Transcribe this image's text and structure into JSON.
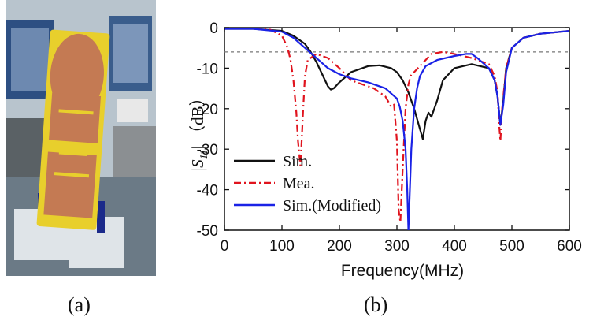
{
  "figure": {
    "captions": {
      "a": "(a)",
      "b": "(b)"
    },
    "photo": {
      "description_icon": "antenna-prototype-photo-icon"
    }
  },
  "colors": {
    "sim": "#111111",
    "mea": "#e0141e",
    "modified": "#1a22e6",
    "threshold": "#777777",
    "antenna_copper": "#c47a53",
    "antenna_fr4": "#e8cf2c"
  },
  "chart_data": {
    "type": "line",
    "title": "",
    "xlabel": "Frequency(MHz)",
    "ylabel": "|S11| (dB)",
    "ylabel_parts": {
      "main": "|S",
      "sub": "11",
      "tail": "| （dB）"
    },
    "xlim": [
      0,
      600
    ],
    "ylim": [
      -50,
      0
    ],
    "xticks": [
      0,
      100,
      200,
      300,
      400,
      500,
      600
    ],
    "yticks": [
      0,
      -10,
      -20,
      -30,
      -40,
      -50
    ],
    "threshold": -6,
    "grid": false,
    "legend_position": "bottom-left",
    "series": [
      {
        "name": "Sim.",
        "style": "solid",
        "color": "#111111",
        "x": [
          0,
          50,
          100,
          120,
          140,
          150,
          160,
          170,
          180,
          185,
          190,
          200,
          220,
          250,
          270,
          290,
          300,
          310,
          320,
          330,
          340,
          345,
          350,
          355,
          360,
          370,
          380,
          400,
          430,
          460,
          470,
          475,
          480,
          485,
          490,
          500,
          520,
          550,
          600
        ],
        "y": [
          -0.3,
          -0.3,
          -0.8,
          -2,
          -4,
          -6,
          -8.5,
          -11.5,
          -14.5,
          -15.3,
          -15,
          -13.5,
          -11,
          -9.5,
          -9.3,
          -10,
          -11,
          -13,
          -16,
          -20,
          -25,
          -27.5,
          -23,
          -21,
          -22,
          -18,
          -13,
          -10,
          -9,
          -10,
          -13,
          -17,
          -24,
          -18,
          -10,
          -5,
          -2.5,
          -1.5,
          -0.8
        ]
      },
      {
        "name": "Mea.",
        "style": "dashdot",
        "color": "#e0141e",
        "x": [
          0,
          60,
          80,
          100,
          110,
          115,
          120,
          125,
          128,
          130,
          132,
          134,
          137,
          140,
          145,
          160,
          180,
          200,
          220,
          240,
          260,
          280,
          290,
          295,
          300,
          303,
          306,
          310,
          315,
          320,
          325,
          330,
          340,
          350,
          360,
          380,
          400,
          430,
          460,
          470,
          475,
          478,
          480,
          483,
          490,
          500,
          520,
          550,
          600
        ],
        "y": [
          -0.2,
          -0.3,
          -0.5,
          -2,
          -5,
          -8,
          -13,
          -21,
          -28,
          -31,
          -34,
          -29,
          -20,
          -12,
          -8,
          -6.5,
          -7.5,
          -10,
          -13,
          -14,
          -15,
          -17,
          -19.5,
          -19,
          -28,
          -45,
          -48,
          -35,
          -20,
          -14,
          -11.5,
          -11,
          -9.5,
          -8,
          -6.5,
          -6,
          -6.5,
          -7.5,
          -9,
          -12,
          -16,
          -24,
          -28,
          -20,
          -10,
          -5,
          -2.5,
          -1.5,
          -0.8
        ]
      },
      {
        "name": "Sim.(Modified)",
        "style": "solid",
        "color": "#1a22e6",
        "x": [
          0,
          50,
          100,
          120,
          140,
          160,
          180,
          200,
          220,
          250,
          280,
          300,
          305,
          310,
          315,
          318,
          320,
          322,
          325,
          330,
          335,
          340,
          350,
          370,
          400,
          420,
          430,
          440,
          460,
          470,
          475,
          480,
          485,
          490,
          500,
          520,
          550,
          600
        ],
        "y": [
          -0.3,
          -0.3,
          -1,
          -2.5,
          -5,
          -7.5,
          -10,
          -11.5,
          -12.5,
          -13.5,
          -15,
          -17.5,
          -19.5,
          -23,
          -30,
          -40,
          -50,
          -42,
          -30,
          -20,
          -15,
          -12,
          -9.5,
          -8,
          -7,
          -6.5,
          -6.5,
          -7.5,
          -10,
          -13,
          -17,
          -24,
          -19,
          -11,
          -5,
          -2.5,
          -1.5,
          -0.8
        ]
      }
    ]
  }
}
